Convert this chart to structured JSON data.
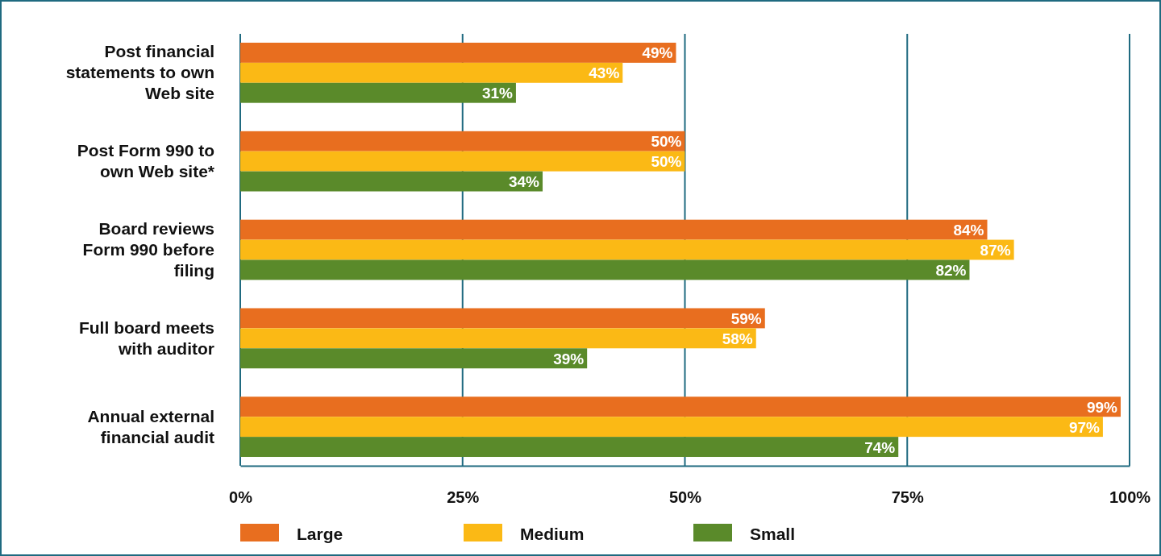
{
  "chart_data": {
    "type": "bar",
    "orientation": "horizontal",
    "categories": [
      "Post financial statements to own Web site",
      "Post Form 990 to own Web site*",
      "Board reviews Form 990 before filing",
      "Full board meets with auditor",
      "Annual external financial audit"
    ],
    "series": [
      {
        "name": "Large",
        "color": "#e86e1f",
        "values": [
          49,
          50,
          84,
          59,
          99
        ],
        "value_labels": [
          "49%",
          "50%",
          "84%",
          "59%",
          "99%"
        ]
      },
      {
        "name": "Medium",
        "color": "#fbb915",
        "values": [
          43,
          50,
          87,
          58,
          97
        ],
        "value_labels": [
          "43%",
          "50%",
          "87%",
          "58%",
          "97%"
        ]
      },
      {
        "name": "Small",
        "color": "#5a8a2a",
        "values": [
          31,
          34,
          82,
          39,
          74
        ],
        "value_labels": [
          "31%",
          "34%",
          "82%",
          "39%",
          "74%"
        ]
      }
    ],
    "xlim": [
      0,
      100
    ],
    "xticks": [
      {
        "value": 0,
        "label": "0%"
      },
      {
        "value": 25,
        "label": "25%"
      },
      {
        "value": 50,
        "label": "50%"
      },
      {
        "value": 75,
        "label": "75%"
      },
      {
        "value": 100,
        "label": "100%"
      }
    ],
    "grid": "x",
    "legend": "bottom"
  }
}
